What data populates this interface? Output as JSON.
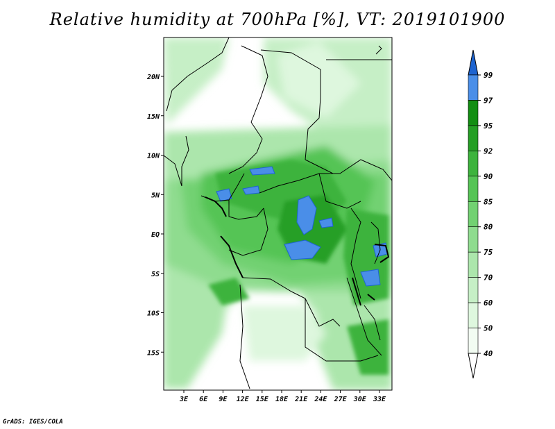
{
  "title": "Relative humidity at 700hPa [%], VT: 2019101900",
  "credit": "GrADS: IGES/COLA",
  "map": {
    "lat_ticks": [
      "20N",
      "15N",
      "10N",
      "5N",
      "EQ",
      "5S",
      "10S",
      "15S"
    ],
    "lon_ticks": [
      "3E",
      "6E",
      "9E",
      "12E",
      "15E",
      "18E",
      "21E",
      "24E",
      "27E",
      "30E",
      "33E"
    ]
  },
  "colorbar": {
    "levels": [
      "99",
      "97",
      "95",
      "92",
      "90",
      "85",
      "80",
      "75",
      "70",
      "60",
      "50",
      "40"
    ],
    "colors": [
      "#1e64d0",
      "#4a8ee8",
      "#138e13",
      "#259f25",
      "#3db33d",
      "#55c455",
      "#72d172",
      "#8fdc8f",
      "#acE6ac",
      "#c6efc6",
      "#def7de",
      "#f2fcf2"
    ]
  }
}
